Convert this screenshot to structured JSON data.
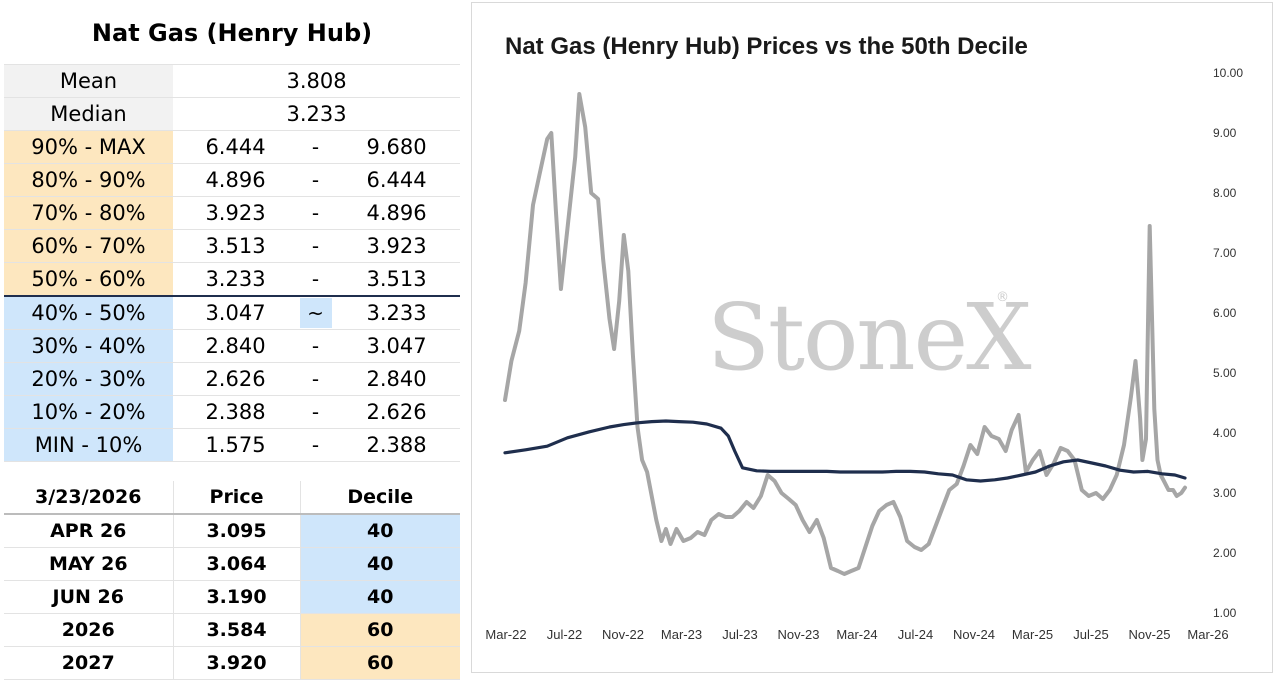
{
  "decile_table": {
    "title": "Nat Gas (Henry Hub)",
    "stats": [
      {
        "label": "Mean",
        "value": "3.808"
      },
      {
        "label": "Median",
        "value": "3.233"
      }
    ],
    "ranges": [
      {
        "label": "90% - MAX",
        "low": "6.444",
        "sep": "-",
        "high": "9.680"
      },
      {
        "label": "80% - 90%",
        "low": "4.896",
        "sep": "-",
        "high": "6.444"
      },
      {
        "label": "70% - 80%",
        "low": "3.923",
        "sep": "-",
        "high": "4.896"
      },
      {
        "label": "60% - 70%",
        "low": "3.513",
        "sep": "-",
        "high": "3.923"
      },
      {
        "label": "50% - 60%",
        "low": "3.233",
        "sep": "-",
        "high": "3.513"
      },
      {
        "label": "40% - 50%",
        "low": "3.047",
        "sep": "~",
        "high": "3.233"
      },
      {
        "label": "30% - 40%",
        "low": "2.840",
        "sep": "-",
        "high": "3.047"
      },
      {
        "label": "20% - 30%",
        "low": "2.626",
        "sep": "-",
        "high": "2.840"
      },
      {
        "label": "10% - 20%",
        "low": "2.388",
        "sep": "-",
        "high": "2.626"
      },
      {
        "label": "MIN - 10%",
        "low": "1.575",
        "sep": "-",
        "high": "2.388"
      }
    ]
  },
  "forward_table": {
    "headers": [
      "3/23/2026",
      "Price",
      "Decile"
    ],
    "rows": [
      {
        "label": "APR 26",
        "price": "3.095",
        "decile": "40"
      },
      {
        "label": "MAY 26",
        "price": "3.064",
        "decile": "40"
      },
      {
        "label": "JUN 26",
        "price": "3.190",
        "decile": "40"
      },
      {
        "label": "2026",
        "price": "3.584",
        "decile": "60"
      },
      {
        "label": "2027",
        "price": "3.920",
        "decile": "60"
      }
    ]
  },
  "colors": {
    "upper_decile": "#fde7bf",
    "lower_decile": "#cfe6fb",
    "price_line": "#a6a6a6",
    "decile_line": "#1f2e4d",
    "watermark": "#cdcdcd"
  },
  "watermark": {
    "text": "StoneX",
    "mark": "®"
  },
  "chart_data": {
    "type": "line",
    "title": "Nat Gas (Henry Hub) Prices vs the 50th Decile",
    "xlabel": "",
    "ylabel": "",
    "ylim": [
      1.0,
      10.0
    ],
    "y_ticks": [
      "1.00",
      "2.00",
      "3.00",
      "4.00",
      "5.00",
      "6.00",
      "7.00",
      "8.00",
      "9.00",
      "10.00"
    ],
    "y_axis_side": "right",
    "x_ticks": [
      "Mar-22",
      "Jul-22",
      "Nov-22",
      "Mar-23",
      "Jul-23",
      "Nov-23",
      "Mar-24",
      "Jul-24",
      "Nov-24",
      "Mar-25",
      "Jul-25",
      "Nov-25",
      "Mar-26"
    ],
    "grid": false,
    "legend": "none",
    "series": [
      {
        "color": "#a6a6a6",
        "x": [
          "2022-03-01",
          "2022-03-15",
          "2022-04-01",
          "2022-04-15",
          "2022-05-01",
          "2022-05-15",
          "2022-06-01",
          "2022-06-10",
          "2022-06-20",
          "2022-07-01",
          "2022-07-15",
          "2022-08-01",
          "2022-08-10",
          "2022-08-23",
          "2022-09-05",
          "2022-09-20",
          "2022-10-01",
          "2022-10-15",
          "2022-10-25",
          "2022-11-05",
          "2022-11-15",
          "2022-11-25",
          "2022-12-05",
          "2022-12-15",
          "2022-12-25",
          "2023-01-05",
          "2023-01-15",
          "2023-01-25",
          "2023-02-05",
          "2023-02-15",
          "2023-02-25",
          "2023-03-10",
          "2023-03-25",
          "2023-04-10",
          "2023-04-25",
          "2023-05-10",
          "2023-05-25",
          "2023-06-10",
          "2023-06-25",
          "2023-07-10",
          "2023-07-25",
          "2023-08-10",
          "2023-08-25",
          "2023-09-10",
          "2023-09-25",
          "2023-10-10",
          "2023-10-25",
          "2023-11-10",
          "2023-11-25",
          "2023-12-10",
          "2023-12-25",
          "2024-01-10",
          "2024-01-25",
          "2024-02-10",
          "2024-02-25",
          "2024-03-10",
          "2024-03-25",
          "2024-04-10",
          "2024-04-25",
          "2024-05-10",
          "2024-05-25",
          "2024-06-10",
          "2024-06-25",
          "2024-07-10",
          "2024-07-25",
          "2024-08-10",
          "2024-08-25",
          "2024-09-10",
          "2024-09-25",
          "2024-10-10",
          "2024-10-25",
          "2024-11-10",
          "2024-11-25",
          "2024-12-10",
          "2024-12-25",
          "2025-01-10",
          "2025-01-25",
          "2025-02-10",
          "2025-02-25",
          "2025-03-10",
          "2025-03-25",
          "2025-04-10",
          "2025-04-25",
          "2025-05-10",
          "2025-05-25",
          "2025-06-10",
          "2025-06-25",
          "2025-07-10",
          "2025-07-25",
          "2025-08-10",
          "2025-08-25",
          "2025-09-10",
          "2025-09-25",
          "2025-10-10",
          "2025-10-25",
          "2025-11-10",
          "2025-11-25",
          "2025-12-05",
          "2025-12-15",
          "2025-12-20",
          "2025-12-28",
          "2026-01-05",
          "2026-01-15",
          "2026-01-22",
          "2026-01-29",
          "2026-02-05",
          "2026-02-15",
          "2026-02-25",
          "2026-03-05",
          "2026-03-15",
          "2026-03-23"
        ],
        "values": [
          4.55,
          5.2,
          5.7,
          6.5,
          7.8,
          8.3,
          8.9,
          9.0,
          7.7,
          6.4,
          7.4,
          8.6,
          9.65,
          9.1,
          8.0,
          7.9,
          6.9,
          5.9,
          5.4,
          6.2,
          7.3,
          6.7,
          5.3,
          4.1,
          3.55,
          3.35,
          2.95,
          2.55,
          2.2,
          2.4,
          2.15,
          2.4,
          2.2,
          2.25,
          2.35,
          2.3,
          2.55,
          2.65,
          2.6,
          2.6,
          2.7,
          2.85,
          2.75,
          2.95,
          3.3,
          3.2,
          3.0,
          2.9,
          2.8,
          2.55,
          2.35,
          2.55,
          2.25,
          1.75,
          1.7,
          1.65,
          1.7,
          1.75,
          2.1,
          2.45,
          2.7,
          2.8,
          2.85,
          2.6,
          2.2,
          2.1,
          2.05,
          2.15,
          2.45,
          2.75,
          3.05,
          3.15,
          3.45,
          3.8,
          3.65,
          4.1,
          3.95,
          3.9,
          3.7,
          4.05,
          4.3,
          3.35,
          3.55,
          3.7,
          3.3,
          3.5,
          3.75,
          3.7,
          3.55,
          3.05,
          2.95,
          3.0,
          2.9,
          3.05,
          3.3,
          3.8,
          4.6,
          5.2,
          4.25,
          3.55,
          3.9,
          7.45,
          4.4,
          3.55,
          3.3,
          3.2,
          3.05,
          3.05,
          2.95,
          3.0,
          3.09
        ]
      },
      {
        "color": "#1f2e4d",
        "x": [
          "2022-03-01",
          "2022-04-15",
          "2022-06-01",
          "2022-07-15",
          "2022-09-01",
          "2022-10-15",
          "2022-11-15",
          "2022-12-15",
          "2023-01-15",
          "2023-02-15",
          "2023-03-15",
          "2023-04-15",
          "2023-05-15",
          "2023-06-15",
          "2023-07-01",
          "2023-07-15",
          "2023-08-01",
          "2023-09-01",
          "2023-10-01",
          "2023-11-01",
          "2023-12-01",
          "2024-01-01",
          "2024-02-01",
          "2024-03-01",
          "2024-04-01",
          "2024-05-01",
          "2024-06-01",
          "2024-07-01",
          "2024-08-01",
          "2024-09-01",
          "2024-10-01",
          "2024-11-01",
          "2024-12-01",
          "2025-01-01",
          "2025-02-01",
          "2025-03-01",
          "2025-04-01",
          "2025-05-01",
          "2025-06-01",
          "2025-07-01",
          "2025-08-01",
          "2025-09-01",
          "2025-10-01",
          "2025-11-01",
          "2025-12-01",
          "2026-01-01",
          "2026-02-01",
          "2026-03-01",
          "2026-03-23"
        ],
        "values": [
          3.67,
          3.72,
          3.78,
          3.92,
          4.02,
          4.1,
          4.14,
          4.17,
          4.19,
          4.2,
          4.19,
          4.18,
          4.15,
          4.08,
          3.95,
          3.7,
          3.42,
          3.37,
          3.36,
          3.36,
          3.36,
          3.36,
          3.36,
          3.35,
          3.35,
          3.35,
          3.35,
          3.36,
          3.36,
          3.35,
          3.32,
          3.3,
          3.22,
          3.2,
          3.22,
          3.25,
          3.3,
          3.35,
          3.45,
          3.52,
          3.55,
          3.5,
          3.45,
          3.38,
          3.35,
          3.36,
          3.32,
          3.3,
          3.25
        ]
      }
    ]
  }
}
